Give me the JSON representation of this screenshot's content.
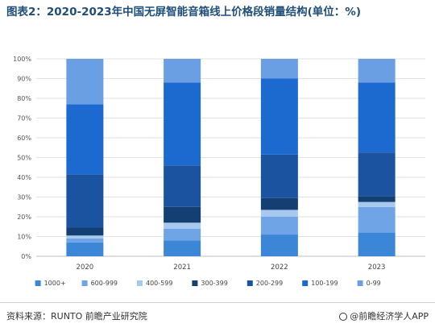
{
  "title": "图表2：2020-2023年中国无屏智能音箱线上价格段销量结构(单位：%)",
  "footer": {
    "source": "资料来源：RUNTO 前瞻产业研究院",
    "brand": "@前瞻经济学人APP"
  },
  "chart_data": {
    "type": "bar",
    "stacked": true,
    "categories": [
      "2020",
      "2021",
      "2022",
      "2023"
    ],
    "yticks": [
      "0%",
      "10%",
      "20%",
      "30%",
      "40%",
      "50%",
      "60%",
      "70%",
      "80%",
      "90%",
      "100%"
    ],
    "ylim": [
      0,
      100
    ],
    "grid": true,
    "legend_position": "bottom",
    "series": [
      {
        "name": "1000+",
        "color": "#3c86d8",
        "values": [
          7,
          8,
          11,
          12
        ]
      },
      {
        "name": "600-999",
        "color": "#6fa5e6",
        "values": [
          2,
          6,
          9,
          13
        ]
      },
      {
        "name": "400-599",
        "color": "#a8c9ef",
        "values": [
          1.5,
          3,
          3.5,
          2.5
        ]
      },
      {
        "name": "300-399",
        "color": "#143f73",
        "values": [
          4,
          8,
          6,
          3
        ]
      },
      {
        "name": "200-299",
        "color": "#1b53a0",
        "values": [
          27,
          21,
          22,
          22
        ]
      },
      {
        "name": "100-199",
        "color": "#1c6ad0",
        "values": [
          35.5,
          42,
          38.5,
          35.5
        ]
      },
      {
        "name": "0-99",
        "color": "#6a9fe3",
        "values": [
          23,
          12,
          10,
          12
        ]
      }
    ]
  }
}
